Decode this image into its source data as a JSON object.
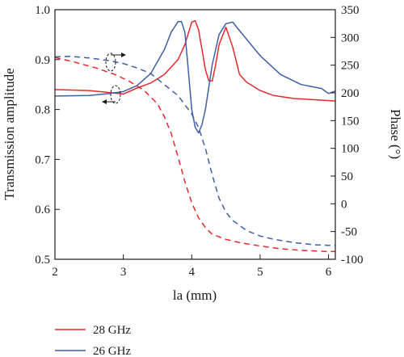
{
  "chart_data": {
    "type": "line",
    "xlabel": "la (mm)",
    "ylabel_left": "Transmission amplitude",
    "ylabel_right": "Phase (°)",
    "xlim": [
      2,
      6.1
    ],
    "ylim_left": [
      0.5,
      1.0
    ],
    "ylim_right": [
      -100,
      350
    ],
    "x_ticks": [
      "2",
      "3",
      "4",
      "5",
      "6"
    ],
    "y_left_ticks": [
      "0.5",
      "0.6",
      "0.7",
      "0.8",
      "0.9",
      "1.0"
    ],
    "y_right_ticks": [
      "-100",
      "-50",
      "0",
      "50",
      "100",
      "150",
      "200",
      "250",
      "300",
      "350"
    ],
    "grid": false,
    "legend_placement": "below",
    "series": [
      {
        "name": "28 GHz",
        "quantity": "amplitude",
        "axis": "left",
        "color": "#e8282d",
        "dash": "solid",
        "x": [
          2.0,
          2.5,
          2.8,
          3.0,
          3.2,
          3.4,
          3.6,
          3.8,
          3.9,
          4.0,
          4.05,
          4.1,
          4.15,
          4.2,
          4.25,
          4.3,
          4.35,
          4.4,
          4.5,
          4.6,
          4.7,
          4.8,
          5.0,
          5.2,
          5.5,
          6.0,
          6.1
        ],
        "y": [
          0.84,
          0.838,
          0.834,
          0.831,
          0.843,
          0.853,
          0.87,
          0.9,
          0.93,
          0.975,
          0.978,
          0.96,
          0.92,
          0.88,
          0.858,
          0.857,
          0.89,
          0.93,
          0.965,
          0.925,
          0.87,
          0.855,
          0.838,
          0.828,
          0.822,
          0.818,
          0.817
        ]
      },
      {
        "name": "26 GHz",
        "quantity": "amplitude",
        "axis": "left",
        "color": "#3f5fa8",
        "dash": "solid",
        "x": [
          2.0,
          2.5,
          2.8,
          3.0,
          3.2,
          3.4,
          3.6,
          3.7,
          3.8,
          3.85,
          3.9,
          3.95,
          4.0,
          4.05,
          4.1,
          4.15,
          4.2,
          4.3,
          4.4,
          4.5,
          4.6,
          4.7,
          5.0,
          5.3,
          5.6,
          5.9,
          6.0,
          6.1
        ],
        "y": [
          0.827,
          0.828,
          0.832,
          0.836,
          0.848,
          0.872,
          0.92,
          0.955,
          0.976,
          0.976,
          0.955,
          0.88,
          0.8,
          0.765,
          0.753,
          0.77,
          0.8,
          0.89,
          0.95,
          0.972,
          0.975,
          0.958,
          0.908,
          0.87,
          0.85,
          0.842,
          0.832,
          0.837
        ]
      },
      {
        "name": "28 GHz",
        "quantity": "phase",
        "axis": "right",
        "color": "#e8282d",
        "dash": "dashed",
        "x": [
          2.0,
          2.3,
          2.6,
          2.9,
          3.1,
          3.3,
          3.5,
          3.6,
          3.7,
          3.8,
          3.9,
          4.0,
          4.1,
          4.2,
          4.3,
          4.5,
          4.7,
          5.0,
          5.3,
          5.6,
          6.0,
          6.1
        ],
        "y": [
          264,
          255,
          245,
          232,
          220,
          205,
          180,
          157,
          127,
          85,
          40,
          2,
          -25,
          -43,
          -55,
          -64,
          -70,
          -76,
          -81,
          -84,
          -86,
          -86
        ]
      },
      {
        "name": "26 GHz",
        "quantity": "phase",
        "axis": "right",
        "color": "#3f5fa8",
        "dash": "dashed",
        "x": [
          2.0,
          2.2,
          2.5,
          2.8,
          3.0,
          3.2,
          3.4,
          3.6,
          3.8,
          4.0,
          4.1,
          4.2,
          4.3,
          4.4,
          4.5,
          4.6,
          4.8,
          5.0,
          5.2,
          5.5,
          5.8,
          6.0,
          6.1
        ],
        "y": [
          265,
          266,
          263,
          258,
          253,
          245,
          235,
          215,
          195,
          162,
          138,
          100,
          52,
          10,
          -15,
          -30,
          -48,
          -58,
          -64,
          -70,
          -74,
          -75,
          -75
        ]
      }
    ],
    "legend": [
      {
        "label": "28 GHz",
        "color": "#e8282d"
      },
      {
        "label": "26 GHz",
        "color": "#3f5fa8"
      }
    ]
  }
}
